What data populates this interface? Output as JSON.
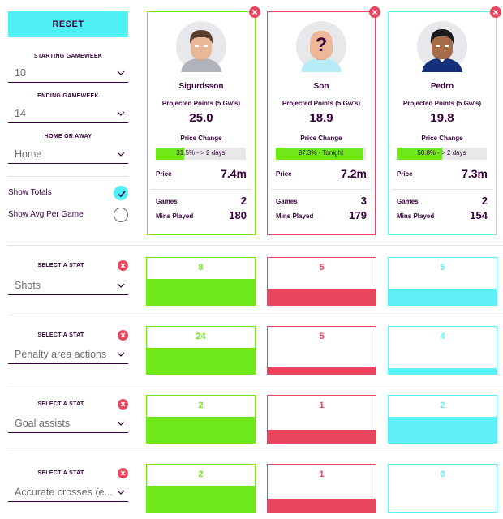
{
  "reset_label": "RESET",
  "starting_gameweek": {
    "label": "STARTING GAMEWEEK",
    "value": "10"
  },
  "ending_gameweek": {
    "label": "ENDING GAMEWEEK",
    "value": "14"
  },
  "home_away": {
    "label": "HOME OR AWAY",
    "value": "Home"
  },
  "show_totals": {
    "label": "Show Totals",
    "checked": true
  },
  "show_avg": {
    "label": "Show Avg Per Game",
    "checked": false
  },
  "colors": {
    "green": "#6fe81a",
    "red": "#e8465e",
    "cyan": "#5ef0f6",
    "purple": "#37003c"
  },
  "players": [
    {
      "name": "Sigurdsson",
      "pp_label": "Projected Points (5 Gw's)",
      "pp": "25.0",
      "pc_label": "Price Change",
      "pc_text": "31.5% - > 2 days",
      "pc_pct": 31.5,
      "price_label": "Price",
      "price": "7.4m",
      "games_label": "Games",
      "games": "2",
      "mins_label": "Mins Played",
      "mins": "180"
    },
    {
      "name": "Son",
      "pp_label": "Projected Points (5 Gw's)",
      "pp": "18.9",
      "pc_label": "Price Change",
      "pc_text": "97.3% - Tonight",
      "pc_pct": 97.3,
      "price_label": "Price",
      "price": "7.2m",
      "games_label": "Games",
      "games": "3",
      "mins_label": "Mins Played",
      "mins": "179"
    },
    {
      "name": "Pedro",
      "pp_label": "Projected Points (5 Gw's)",
      "pp": "19.8",
      "pc_label": "Price Change",
      "pc_text": "50.8% - > 2 days",
      "pc_pct": 50.8,
      "price_label": "Price",
      "price": "7.3m",
      "games_label": "Games",
      "games": "2",
      "mins_label": "Mins Played",
      "mins": "154"
    }
  ],
  "stats": [
    {
      "label": "SELECT A STAT",
      "stat": "Shots",
      "values": [
        "8",
        "5",
        "5"
      ],
      "fills": [
        0.55,
        0.35,
        0.35
      ]
    },
    {
      "label": "SELECT A STAT",
      "stat": "Penalty area actions",
      "values": [
        "24",
        "5",
        "4"
      ],
      "fills": [
        0.55,
        0.14,
        0.12
      ]
    },
    {
      "label": "SELECT A STAT",
      "stat": "Goal assists",
      "values": [
        "2",
        "1",
        "2"
      ],
      "fills": [
        0.55,
        0.28,
        0.55
      ]
    },
    {
      "label": "SELECT A STAT",
      "stat": "Accurate crosses (e...",
      "values": [
        "2",
        "1",
        "0"
      ],
      "fills": [
        0.55,
        0.28,
        0
      ]
    }
  ]
}
